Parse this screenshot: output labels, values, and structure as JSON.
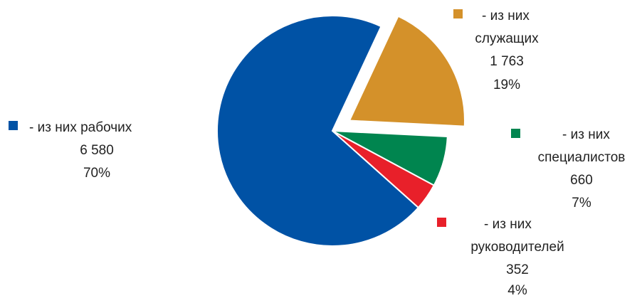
{
  "chart_data": {
    "type": "pie",
    "start_angle_deg": 25,
    "direction": "clockwise",
    "slices": [
      {
        "label": "- из них служащих",
        "value": 1763,
        "value_label": "1 763",
        "percent": "19%",
        "color": "#D4912A",
        "exploded": true
      },
      {
        "label": "- из них специалистов",
        "value": 660,
        "value_label": "660",
        "percent": "7%",
        "color": "#00854F",
        "exploded": false
      },
      {
        "label": "- из них руководителей",
        "value": 352,
        "value_label": "352",
        "percent": "4%",
        "color": "#E8202A",
        "exploded": false
      },
      {
        "label": "- из них рабочих",
        "value": 6580,
        "value_label": "6 580",
        "percent": "70%",
        "color": "#0052A5",
        "exploded": false
      }
    ]
  }
}
